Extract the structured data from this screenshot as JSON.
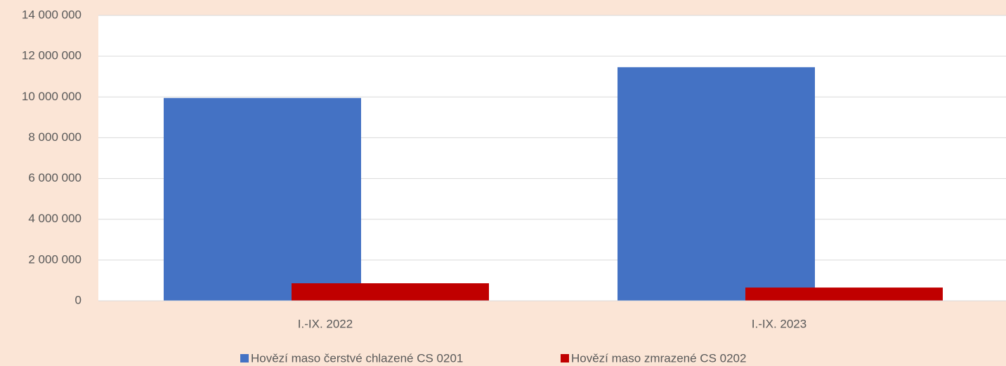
{
  "chart_data": {
    "type": "bar",
    "categories": [
      "I.-IX. 2022",
      "I.-IX. 2023"
    ],
    "series": [
      {
        "name": "Hovězí maso čerstvé chlazené CS 0201",
        "color": "#4472c4",
        "values": [
          9950000,
          11460000
        ]
      },
      {
        "name": "Hovězí maso zmrazené CS 0202",
        "color": "#c00000",
        "values": [
          860000,
          650000
        ]
      }
    ],
    "ylim": [
      0,
      14000000
    ],
    "yticks": [
      0,
      {
        "value": 2000000,
        "label": "2 000 000"
      },
      {
        "value": 4000000,
        "label": "4 000 000"
      },
      {
        "value": 6000000,
        "label": "6 000 000"
      },
      {
        "value": 8000000,
        "label": "8 000 000"
      },
      {
        "value": 10000000,
        "label": "10 000 000"
      },
      {
        "value": 12000000,
        "label": "12 000 000"
      },
      {
        "value": 14000000,
        "label": "14 000 000"
      }
    ],
    "grid": true,
    "legend": "bottom"
  }
}
